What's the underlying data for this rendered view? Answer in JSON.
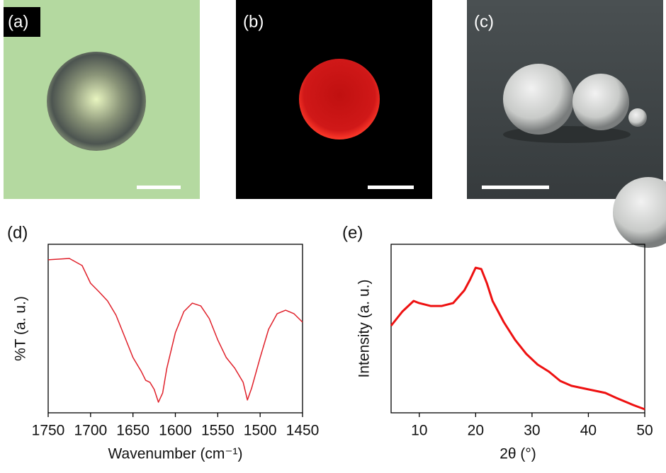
{
  "panels": [
    {
      "label": "(a)"
    },
    {
      "label": "(b)"
    },
    {
      "label": "(c)"
    }
  ],
  "chart_data": [
    {
      "type": "line",
      "label": "(d)",
      "x_label": "Wavenumber (cm⁻¹)",
      "y_label": "%T (a. u.)",
      "xlim": [
        1750,
        1450
      ],
      "xticks": [
        1750,
        1700,
        1650,
        1600,
        1550,
        1500,
        1450
      ],
      "ylim": [
        0,
        100
      ],
      "x": [
        1750,
        1725,
        1710,
        1700,
        1690,
        1680,
        1670,
        1660,
        1650,
        1640,
        1635,
        1630,
        1625,
        1620,
        1615,
        1610,
        1600,
        1590,
        1580,
        1570,
        1560,
        1550,
        1540,
        1530,
        1520,
        1515,
        1510,
        1500,
        1490,
        1480,
        1470,
        1460,
        1450
      ],
      "series": [
        {
          "color": "#e0202a",
          "values": [
            90.8,
            91.6,
            87.4,
            76.9,
            71.8,
            66.4,
            58.0,
            45.4,
            32.8,
            24.4,
            19.3,
            18.1,
            13.9,
            6.3,
            11.8,
            26.5,
            47.5,
            60.1,
            65.1,
            63.4,
            55.9,
            43.3,
            32.8,
            26.5,
            18.1,
            7.6,
            14.7,
            32.8,
            49.6,
            58.8,
            60.9,
            58.8,
            53.8
          ]
        }
      ]
    },
    {
      "type": "line",
      "label": "(e)",
      "x_label": "2θ (°)",
      "y_label": "Intensity (a. u.)",
      "xlim": [
        5,
        50
      ],
      "xticks": [
        10,
        20,
        30,
        40,
        50
      ],
      "ylim": [
        0,
        100
      ],
      "x": [
        5,
        7,
        9,
        10,
        12,
        14,
        16,
        18,
        19,
        20,
        21,
        22,
        23,
        25,
        27,
        29,
        31,
        33,
        35,
        37,
        40,
        43,
        45,
        48,
        50
      ],
      "series": [
        {
          "color": "#ee1111",
          "values": [
            51.7,
            60.1,
            66.4,
            65.1,
            63.4,
            63.4,
            65.1,
            72.7,
            79.0,
            86.1,
            85.3,
            76.9,
            66.4,
            53.8,
            43.3,
            34.9,
            28.6,
            24.4,
            18.9,
            16.0,
            13.9,
            11.8,
            8.8,
            4.6,
            2.1
          ]
        }
      ]
    }
  ]
}
